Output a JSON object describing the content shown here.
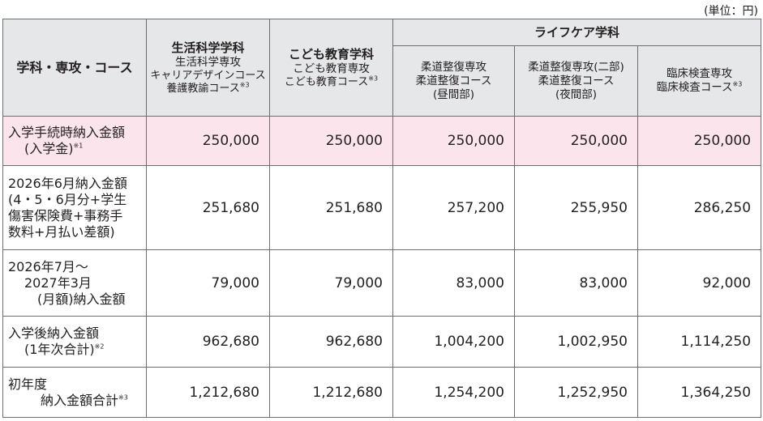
{
  "unit_note": "(単位：円)",
  "header": {
    "corner_label": "学科・専攻・コース",
    "col1": {
      "dept": "生活科学学科",
      "major": "生活科学専攻",
      "course1": "キャリアデザインコース",
      "course2": "養護教諭コース",
      "note": "※3"
    },
    "col2": {
      "dept": "こども教育学科",
      "major": "こども教育専攻",
      "course": "こども教育コース",
      "note": "※3"
    },
    "life_care": "ライフケア学科",
    "col3": {
      "major": "柔道整復専攻",
      "course": "柔道整復コース",
      "sub": "(昼間部)"
    },
    "col4": {
      "major": "柔道整復専攻(二部)",
      "course": "柔道整復コース",
      "sub": "(夜間部)"
    },
    "col5": {
      "major": "臨床検査専攻",
      "course": "臨床検査コース",
      "note": "※3"
    }
  },
  "rows": [
    {
      "label_lines": [
        "入学手続時納入金額",
        "(入学金)"
      ],
      "note": "※1",
      "values": [
        "250,000",
        "250,000",
        "250,000",
        "250,000",
        "250,000"
      ]
    },
    {
      "label_lines": [
        "2026年6月納入金額",
        "(4・5・6月分+学生",
        "傷害保険費+事務手",
        "数料+月払い差額)"
      ],
      "values": [
        "251,680",
        "251,680",
        "257,200",
        "255,950",
        "286,250"
      ]
    },
    {
      "label_lines": [
        "2026年7月～",
        "2027年3月",
        "(月額)納入金額"
      ],
      "values": [
        "79,000",
        "79,000",
        "83,000",
        "83,000",
        "92,000"
      ]
    },
    {
      "label_lines": [
        "入学後納入金額",
        "(1年次合計)"
      ],
      "note": "※2",
      "values": [
        "962,680",
        "962,680",
        "1,004,200",
        "1,002,950",
        "1,114,250"
      ]
    },
    {
      "label_lines": [
        "初年度",
        "納入金額合計"
      ],
      "note": "※3",
      "values": [
        "1,212,680",
        "1,212,680",
        "1,254,200",
        "1,252,950",
        "1,364,250"
      ]
    }
  ]
}
